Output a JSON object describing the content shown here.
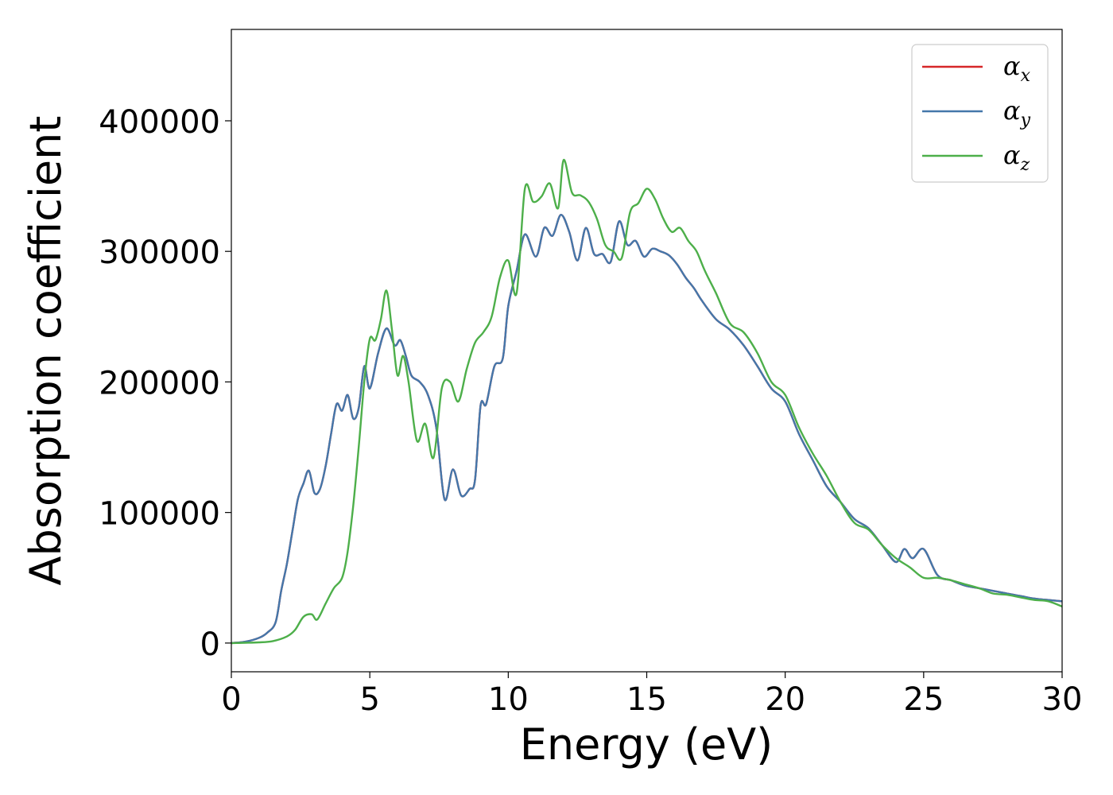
{
  "chart_data": {
    "type": "line",
    "title": "",
    "xlabel": "Energy (eV)",
    "ylabel": "Absorption coefficient",
    "xlim": [
      0,
      30
    ],
    "ylim": [
      -22000,
      470000
    ],
    "xticks": [
      0,
      5,
      10,
      15,
      20,
      25,
      30
    ],
    "xtick_labels": [
      "0",
      "5",
      "10",
      "15",
      "20",
      "25",
      "30"
    ],
    "yticks": [
      0,
      100000,
      200000,
      300000,
      400000
    ],
    "ytick_labels": [
      "0",
      "100000",
      "200000",
      "300000",
      "400000"
    ],
    "grid": false,
    "legend_position": "top-right",
    "series": [
      {
        "name": "αx",
        "symbol": "α",
        "subscript": "x",
        "color": "#d62728",
        "x": [
          0,
          0.5,
          1,
          1.3,
          1.6,
          1.8,
          2,
          2.2,
          2.4,
          2.6,
          2.8,
          3.0,
          3.2,
          3.4,
          3.6,
          3.8,
          4.0,
          4.2,
          4.4,
          4.6,
          4.8,
          5.0,
          5.3,
          5.6,
          5.9,
          6.1,
          6.3,
          6.5,
          6.8,
          7.1,
          7.4,
          7.7,
          8.0,
          8.3,
          8.6,
          8.8,
          9.0,
          9.2,
          9.5,
          9.8,
          10.0,
          10.3,
          10.6,
          11.0,
          11.3,
          11.6,
          11.9,
          12.2,
          12.5,
          12.8,
          13.1,
          13.4,
          13.7,
          14.0,
          14.3,
          14.6,
          14.9,
          15.2,
          15.5,
          15.8,
          16.1,
          16.4,
          16.7,
          17.0,
          17.5,
          18.0,
          18.5,
          19.0,
          19.5,
          20.0,
          20.5,
          21.0,
          21.5,
          22.0,
          22.5,
          23.0,
          23.5,
          24.0,
          24.3,
          24.6,
          25.0,
          25.5,
          26.0,
          26.5,
          27.0,
          27.5,
          28.0,
          28.5,
          29.0,
          29.5,
          30.0
        ],
        "values": [
          0,
          1000,
          4000,
          8000,
          16000,
          40000,
          60000,
          85000,
          110000,
          122000,
          132000,
          115000,
          118000,
          135000,
          160000,
          183000,
          178000,
          190000,
          172000,
          180000,
          212000,
          195000,
          222000,
          241000,
          228000,
          232000,
          220000,
          205000,
          200000,
          190000,
          165000,
          110000,
          133000,
          113000,
          118000,
          125000,
          182000,
          183000,
          212000,
          218000,
          258000,
          285000,
          313000,
          296000,
          318000,
          312000,
          328000,
          315000,
          293000,
          318000,
          298000,
          298000,
          292000,
          323000,
          305000,
          308000,
          296000,
          302000,
          300000,
          297000,
          290000,
          280000,
          272000,
          262000,
          248000,
          240000,
          228000,
          212000,
          195000,
          185000,
          160000,
          140000,
          120000,
          108000,
          95000,
          88000,
          75000,
          62000,
          72000,
          65000,
          72000,
          52000,
          48000,
          44000,
          42000,
          40000,
          38000,
          36000,
          34000,
          33000,
          32000
        ]
      },
      {
        "name": "αy",
        "symbol": "α",
        "subscript": "y",
        "color": "#4477aa",
        "x": [
          0,
          0.5,
          1,
          1.3,
          1.6,
          1.8,
          2,
          2.2,
          2.4,
          2.6,
          2.8,
          3.0,
          3.2,
          3.4,
          3.6,
          3.8,
          4.0,
          4.2,
          4.4,
          4.6,
          4.8,
          5.0,
          5.3,
          5.6,
          5.9,
          6.1,
          6.3,
          6.5,
          6.8,
          7.1,
          7.4,
          7.7,
          8.0,
          8.3,
          8.6,
          8.8,
          9.0,
          9.2,
          9.5,
          9.8,
          10.0,
          10.3,
          10.6,
          11.0,
          11.3,
          11.6,
          11.9,
          12.2,
          12.5,
          12.8,
          13.1,
          13.4,
          13.7,
          14.0,
          14.3,
          14.6,
          14.9,
          15.2,
          15.5,
          15.8,
          16.1,
          16.4,
          16.7,
          17.0,
          17.5,
          18.0,
          18.5,
          19.0,
          19.5,
          20.0,
          20.5,
          21.0,
          21.5,
          22.0,
          22.5,
          23.0,
          23.5,
          24.0,
          24.3,
          24.6,
          25.0,
          25.5,
          26.0,
          26.5,
          27.0,
          27.5,
          28.0,
          28.5,
          29.0,
          29.5,
          30.0
        ],
        "values": [
          0,
          1000,
          4000,
          8000,
          16000,
          40000,
          60000,
          85000,
          110000,
          122000,
          132000,
          115000,
          118000,
          135000,
          160000,
          183000,
          178000,
          190000,
          172000,
          180000,
          212000,
          195000,
          222000,
          241000,
          228000,
          232000,
          220000,
          205000,
          200000,
          190000,
          165000,
          110000,
          133000,
          113000,
          118000,
          125000,
          182000,
          183000,
          212000,
          218000,
          258000,
          285000,
          313000,
          296000,
          318000,
          312000,
          328000,
          315000,
          293000,
          318000,
          298000,
          298000,
          292000,
          323000,
          305000,
          308000,
          296000,
          302000,
          300000,
          297000,
          290000,
          280000,
          272000,
          262000,
          248000,
          240000,
          228000,
          212000,
          195000,
          185000,
          160000,
          140000,
          120000,
          108000,
          95000,
          88000,
          75000,
          62000,
          72000,
          65000,
          72000,
          52000,
          48000,
          44000,
          42000,
          40000,
          38000,
          36000,
          34000,
          33000,
          32000
        ]
      },
      {
        "name": "αz",
        "symbol": "α",
        "subscript": "z",
        "color": "#4daf4a",
        "x": [
          0,
          0.5,
          1,
          1.5,
          2,
          2.3,
          2.6,
          2.9,
          3.1,
          3.4,
          3.7,
          4.0,
          4.2,
          4.4,
          4.6,
          4.8,
          5.0,
          5.2,
          5.4,
          5.6,
          5.8,
          6.0,
          6.2,
          6.4,
          6.7,
          7.0,
          7.3,
          7.6,
          7.9,
          8.2,
          8.5,
          8.8,
          9.1,
          9.4,
          9.7,
          10.0,
          10.3,
          10.6,
          10.9,
          11.2,
          11.5,
          11.8,
          12.0,
          12.3,
          12.6,
          12.9,
          13.2,
          13.5,
          13.8,
          14.1,
          14.4,
          14.7,
          15.0,
          15.3,
          15.6,
          15.9,
          16.2,
          16.5,
          16.8,
          17.1,
          17.5,
          18.0,
          18.5,
          19.0,
          19.5,
          20.0,
          20.5,
          21.0,
          21.5,
          22.0,
          22.5,
          23.0,
          23.5,
          24.0,
          24.5,
          25.0,
          25.5,
          26.0,
          26.5,
          27.0,
          27.5,
          28.0,
          28.5,
          29.0,
          29.5,
          30.0
        ],
        "values": [
          0,
          200,
          500,
          1500,
          5000,
          10000,
          20000,
          22000,
          18000,
          30000,
          42000,
          50000,
          70000,
          105000,
          150000,
          200000,
          233000,
          232000,
          248000,
          270000,
          240000,
          205000,
          220000,
          200000,
          155000,
          168000,
          142000,
          195000,
          200000,
          185000,
          210000,
          230000,
          238000,
          250000,
          280000,
          293000,
          268000,
          348000,
          338000,
          342000,
          352000,
          333000,
          370000,
          345000,
          343000,
          338000,
          325000,
          305000,
          300000,
          295000,
          330000,
          337000,
          348000,
          340000,
          325000,
          315000,
          318000,
          308000,
          300000,
          285000,
          268000,
          245000,
          238000,
          222000,
          200000,
          190000,
          165000,
          145000,
          128000,
          108000,
          92000,
          87000,
          75000,
          65000,
          58000,
          50000,
          50000,
          48000,
          45000,
          42000,
          38000,
          37000,
          35000,
          33000,
          32000,
          28000
        ]
      }
    ]
  }
}
